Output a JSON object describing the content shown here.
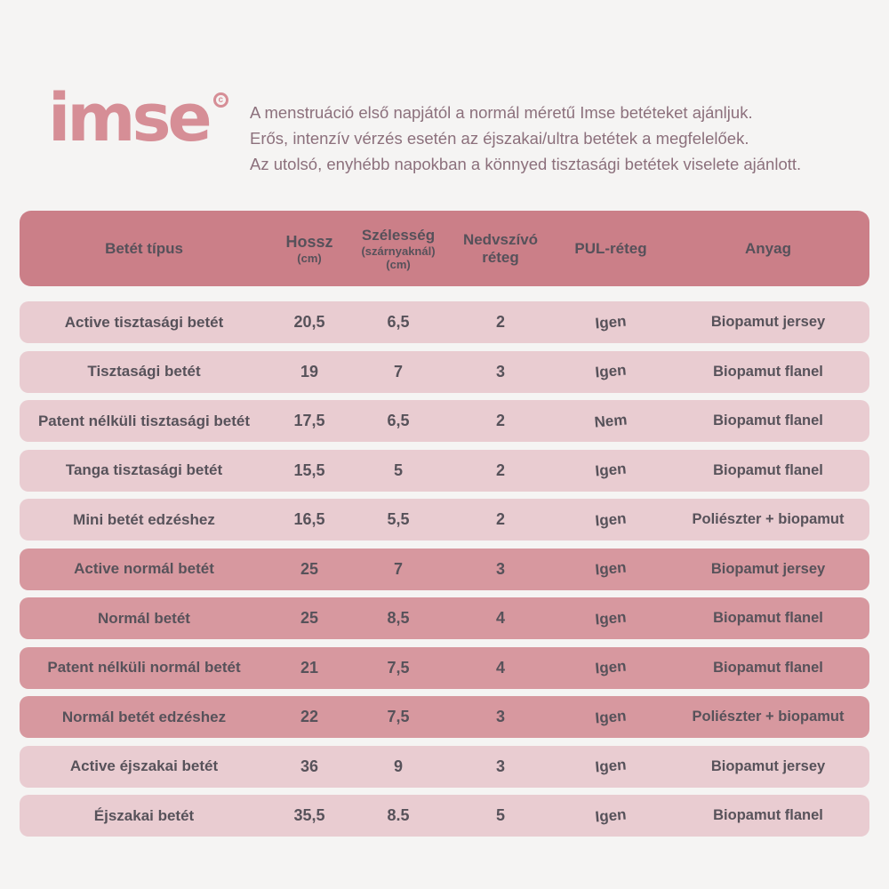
{
  "brand": {
    "logo_text": "imse",
    "trademark": "c",
    "logo_color": "#d68e96"
  },
  "intro": {
    "lines": [
      "A menstruáció első napjától a normál méretű Imse betéteket ajánljuk.",
      "Erős, intenzív vérzés esetén az éjszakai/ultra betétek a megfelelőek.",
      "Az utolsó, enyhébb napokban a könnyed tisztasági betétek viselete ajánlott."
    ]
  },
  "table": {
    "columns": [
      {
        "title": "Betét típus"
      },
      {
        "title": "Hossz",
        "sub1": "(cm)"
      },
      {
        "title": "Szélesség",
        "sub1": "(szárnyaknál)",
        "sub2": "(cm)"
      },
      {
        "title": "Nedvszívó réteg"
      },
      {
        "title": "PUL-réteg"
      },
      {
        "title": "Anyag"
      }
    ],
    "rows": [
      {
        "name": "Active tisztasági betét",
        "hossz": "20,5",
        "szelesseg": "6,5",
        "nedvszivo": "2",
        "pul": "Igen",
        "anyag": "Biopamut jersey",
        "highlighted": false
      },
      {
        "name": "Tisztasági betét",
        "hossz": "19",
        "szelesseg": "7",
        "nedvszivo": "3",
        "pul": "Igen",
        "anyag": "Biopamut flanel",
        "highlighted": false
      },
      {
        "name": "Patent nélküli tisztasági betét",
        "hossz": "17,5",
        "szelesseg": "6,5",
        "nedvszivo": "2",
        "pul": "Nem",
        "anyag": "Biopamut flanel",
        "highlighted": false
      },
      {
        "name": "Tanga tisztasági betét",
        "hossz": "15,5",
        "szelesseg": "5",
        "nedvszivo": "2",
        "pul": "Igen",
        "anyag": "Biopamut flanel",
        "highlighted": false
      },
      {
        "name": "Mini betét edzéshez",
        "hossz": "16,5",
        "szelesseg": "5,5",
        "nedvszivo": "2",
        "pul": "Igen",
        "anyag": "Poliészter + biopamut",
        "highlighted": false
      },
      {
        "name": "Active normál betét",
        "hossz": "25",
        "szelesseg": "7",
        "nedvszivo": "3",
        "pul": "Igen",
        "anyag": "Biopamut jersey",
        "highlighted": true
      },
      {
        "name": "Normál betét",
        "hossz": "25",
        "szelesseg": "8,5",
        "nedvszivo": "4",
        "pul": "Igen",
        "anyag": "Biopamut flanel",
        "highlighted": true
      },
      {
        "name": "Patent nélküli normál betét",
        "hossz": "21",
        "szelesseg": "7,5",
        "nedvszivo": "4",
        "pul": "Igen",
        "anyag": "Biopamut flanel",
        "highlighted": true
      },
      {
        "name": "Normál betét edzéshez",
        "hossz": "22",
        "szelesseg": "7,5",
        "nedvszivo": "3",
        "pul": "Igen",
        "anyag": "Poliészter + biopamut",
        "highlighted": true
      },
      {
        "name": "Active éjszakai betét",
        "hossz": "36",
        "szelesseg": "9",
        "nedvszivo": "3",
        "pul": "Igen",
        "anyag": "Biopamut jersey",
        "highlighted": false
      },
      {
        "name": "Éjszakai betét",
        "hossz": "35,5",
        "szelesseg": "8.5",
        "nedvszivo": "5",
        "pul": "Igen",
        "anyag": "Biopamut flanel",
        "highlighted": false
      }
    ]
  },
  "colors": {
    "background": "#f5f4f3",
    "header_bg": "#cb7f88",
    "row_light": "#e9ccd1",
    "row_dark": "#d7989f",
    "text": "#57525a",
    "intro_text": "#8c707c",
    "logo_pink": "#d68e96"
  }
}
